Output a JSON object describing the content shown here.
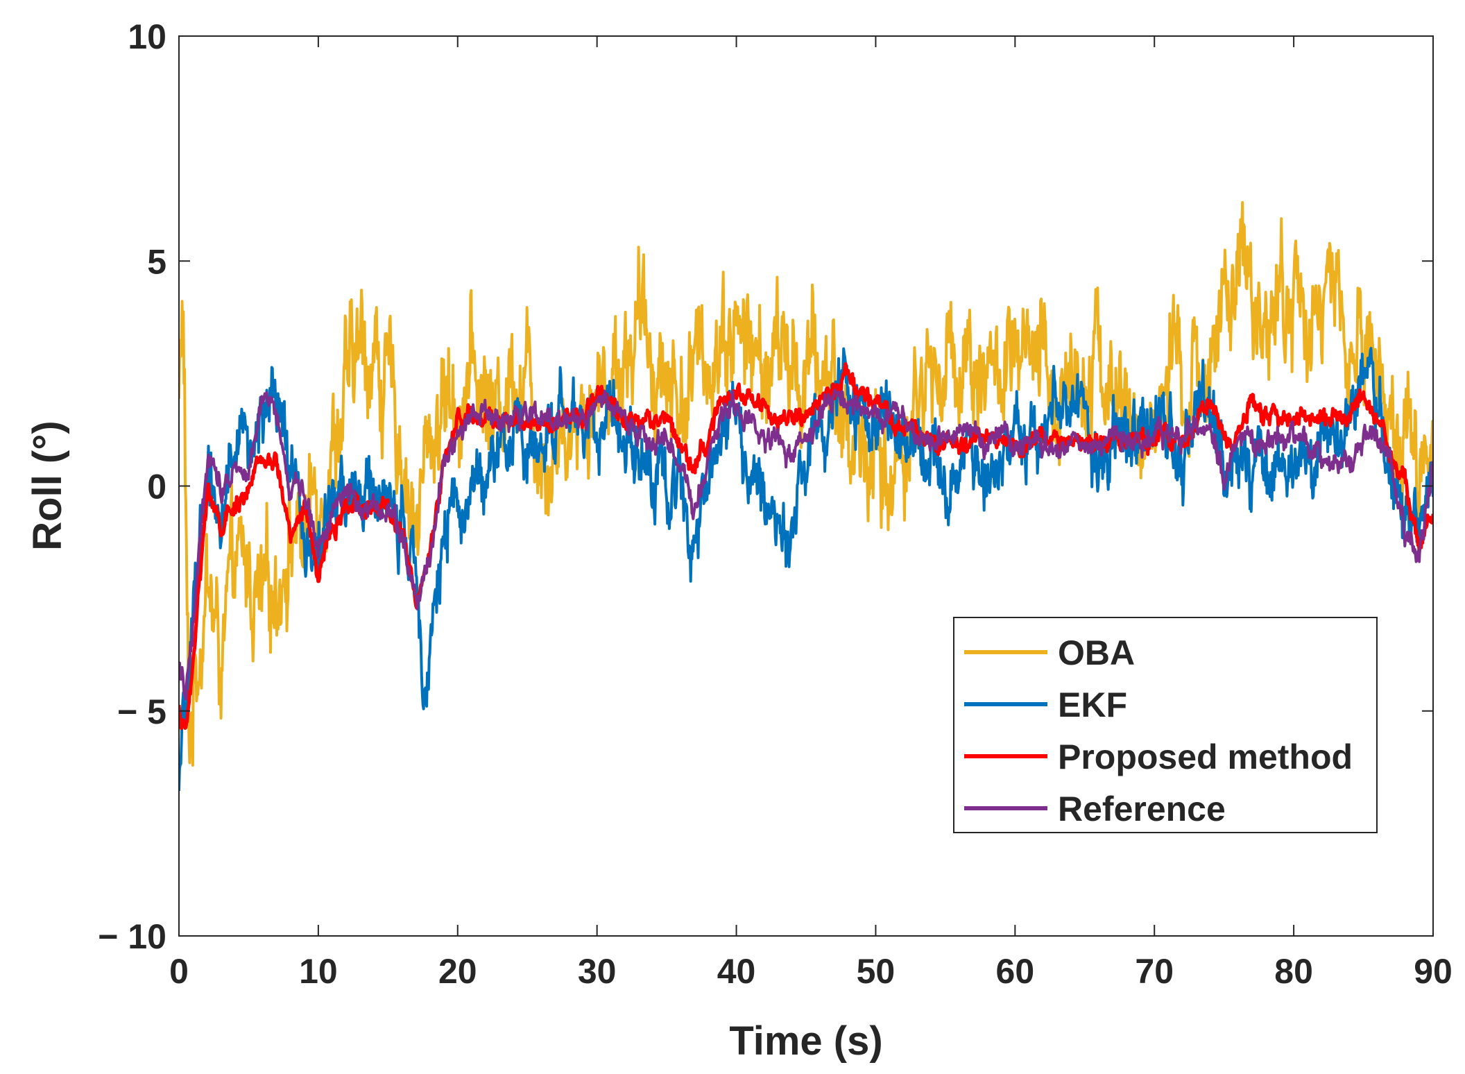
{
  "chart_data": {
    "type": "line",
    "title": "",
    "xlabel": "Time (s)",
    "ylabel": "Roll (°)",
    "xlim": [
      0,
      90
    ],
    "ylim": [
      -10,
      10
    ],
    "xticks": [
      0,
      10,
      20,
      30,
      40,
      50,
      60,
      70,
      80,
      90
    ],
    "yticks": [
      -10,
      -5,
      0,
      5,
      10
    ],
    "xtick_labels": [
      "0",
      "10",
      "20",
      "30",
      "40",
      "50",
      "60",
      "70",
      "80",
      "90"
    ],
    "ytick_labels": [
      "− 10",
      "− 5",
      "0",
      "5",
      "10"
    ],
    "grid": false,
    "legend_position": "lower-right",
    "series": [
      {
        "name": "OBA",
        "color": "#EDB120",
        "noise": 1.5,
        "x": [
          0,
          0.3,
          0.7,
          1.2,
          2,
          3,
          4,
          5,
          6,
          7,
          8,
          9,
          10,
          11,
          12,
          13,
          14,
          15,
          16,
          17,
          18,
          19,
          20,
          21,
          22,
          23,
          24,
          25,
          26,
          27,
          28,
          29,
          30,
          31,
          32,
          33,
          34,
          35,
          36,
          37,
          38,
          39,
          40,
          41,
          42,
          43,
          44,
          45,
          46,
          47,
          48,
          49,
          50,
          51,
          52,
          53,
          54,
          55,
          56,
          57,
          58,
          59,
          60,
          61,
          62,
          63,
          64,
          65,
          66,
          67,
          68,
          69,
          70,
          71,
          72,
          73,
          74,
          75,
          76,
          77,
          78,
          79,
          80,
          81,
          82,
          83,
          84,
          85,
          86,
          87,
          88,
          89,
          90
        ],
        "y": [
          2,
          4,
          -6,
          -4,
          -2,
          -4,
          -2,
          -2,
          -3,
          -2,
          -1,
          -1,
          0,
          1,
          2,
          3,
          3,
          2,
          1,
          -1,
          1,
          2,
          2,
          2.5,
          2,
          1.5,
          3,
          2.5,
          1,
          1,
          1.5,
          2,
          2,
          2.5,
          3,
          3.5,
          3,
          2.5,
          2,
          2.5,
          3,
          3.5,
          3.5,
          3,
          2.5,
          3,
          2.5,
          2.5,
          2.5,
          2.5,
          1,
          1,
          0.5,
          0,
          1,
          2,
          2.5,
          2.5,
          3,
          3,
          2.5,
          2.5,
          2.5,
          2.5,
          2.5,
          2,
          2.5,
          3,
          3,
          2,
          1.5,
          1,
          1.5,
          2.5,
          2,
          2,
          3.5,
          3.5,
          4.5,
          4,
          4,
          4,
          4,
          4,
          4,
          4,
          3,
          3,
          3,
          1.5,
          1,
          0.5,
          1
        ]
      },
      {
        "name": "EKF",
        "color": "#0072BD",
        "noise": 0.9,
        "x": [
          0,
          0.5,
          1,
          1.5,
          2,
          3,
          4,
          5,
          6,
          7,
          8,
          9,
          10,
          11,
          12,
          13,
          14,
          15,
          16,
          17,
          17.5,
          18,
          19,
          20,
          21,
          22,
          23,
          24,
          25,
          26,
          27,
          28,
          29,
          30,
          31,
          32,
          33,
          34,
          35,
          36,
          37,
          38,
          39,
          40,
          41,
          42,
          43,
          44,
          45,
          46,
          47,
          48,
          49,
          50,
          51,
          52,
          53,
          54,
          55,
          56,
          57,
          58,
          59,
          60,
          61,
          62,
          63,
          64,
          65,
          66,
          67,
          68,
          69,
          70,
          71,
          72,
          73,
          74,
          75,
          76,
          77,
          78,
          79,
          80,
          81,
          82,
          83,
          84,
          85,
          86,
          87,
          88,
          89,
          90
        ],
        "y": [
          -7,
          -5,
          -3,
          -1,
          0,
          -0.5,
          1,
          1,
          1.5,
          1.5,
          0.5,
          -1,
          -1.5,
          -0.5,
          0,
          -0.5,
          0,
          -0.5,
          -1,
          -2,
          -4,
          -3,
          -1.5,
          -0.5,
          0,
          0.5,
          0.5,
          1,
          1,
          1,
          1.5,
          1.5,
          1.5,
          1.5,
          1.5,
          1.5,
          1,
          0,
          0,
          0,
          -1,
          0.5,
          1.5,
          1.5,
          0,
          -0.5,
          -0.5,
          -0.5,
          0.5,
          1.5,
          2,
          2,
          1.5,
          1.5,
          1.5,
          1.5,
          1,
          0.5,
          0.5,
          0.5,
          0.5,
          0.5,
          0.5,
          1,
          1,
          1.5,
          2,
          1.5,
          1.5,
          1,
          1,
          1,
          1,
          1,
          1,
          1,
          1.5,
          1.5,
          0.5,
          1,
          0.5,
          0.5,
          0.5,
          0.5,
          0.5,
          1,
          1,
          1.5,
          2,
          1.5,
          0,
          -1,
          -1,
          0.5
        ]
      },
      {
        "name": "Proposed method",
        "color": "#FF0000",
        "noise": 0.25,
        "x": [
          0,
          0.5,
          1,
          1.5,
          2,
          2.5,
          3,
          4,
          5,
          6,
          7,
          8,
          9,
          10,
          11,
          12,
          13,
          14,
          15,
          16,
          17,
          18,
          19,
          20,
          21,
          22,
          23,
          24,
          25,
          26,
          27,
          28,
          29,
          30,
          31,
          32,
          33,
          34,
          35,
          36,
          37,
          38,
          39,
          40,
          41,
          42,
          43,
          44,
          45,
          46,
          47,
          48,
          49,
          50,
          51,
          52,
          53,
          54,
          55,
          56,
          57,
          58,
          59,
          60,
          61,
          62,
          63,
          64,
          65,
          66,
          67,
          68,
          69,
          70,
          71,
          72,
          73,
          74,
          75,
          76,
          77,
          78,
          79,
          80,
          81,
          82,
          83,
          84,
          85,
          86,
          87,
          88,
          89,
          90
        ],
        "y": [
          -5,
          -5.5,
          -4,
          -2,
          0,
          -0.5,
          -1,
          -0.5,
          0,
          0.5,
          0.5,
          -1,
          -0.5,
          -2,
          -1,
          -0.5,
          -0.5,
          -0.5,
          -0.5,
          -1,
          -2.5,
          -1.5,
          0.5,
          1.5,
          1.5,
          1.5,
          1.5,
          1.5,
          1.5,
          1.5,
          1.5,
          1.5,
          1.5,
          2,
          2,
          1.5,
          1.5,
          1.5,
          1.5,
          1,
          0.5,
          1,
          2,
          2,
          2,
          1.8,
          1.5,
          1.5,
          1.5,
          2,
          2,
          2.5,
          2,
          2,
          1.5,
          1.5,
          1.2,
          1,
          1,
          1,
          1,
          1,
          1,
          1,
          1,
          1,
          1,
          1,
          1,
          1,
          1,
          1,
          1,
          1,
          1,
          1,
          1.5,
          2,
          1,
          1,
          2,
          1.5,
          1.5,
          1.5,
          1.5,
          1.5,
          1.5,
          1.5,
          2,
          1.5,
          0.5,
          0,
          -1.5,
          -0.5
        ]
      },
      {
        "name": "Reference",
        "color": "#7E2F8E",
        "noise": 0.3,
        "x": [
          0,
          0.5,
          1,
          1.5,
          2,
          2.5,
          3,
          4,
          5,
          6,
          7,
          8,
          9,
          10,
          11,
          12,
          13,
          14,
          15,
          16,
          17,
          18,
          19,
          20,
          21,
          22,
          23,
          24,
          25,
          26,
          27,
          28,
          29,
          30,
          31,
          32,
          33,
          34,
          35,
          36,
          37,
          38,
          39,
          40,
          41,
          42,
          43,
          44,
          45,
          46,
          47,
          48,
          49,
          50,
          51,
          52,
          53,
          54,
          55,
          56,
          57,
          58,
          59,
          60,
          61,
          62,
          63,
          64,
          65,
          66,
          67,
          68,
          69,
          70,
          71,
          72,
          73,
          74,
          75,
          76,
          77,
          78,
          79,
          80,
          81,
          82,
          83,
          84,
          85,
          86,
          87,
          88,
          89,
          90
        ],
        "y": [
          -4,
          -4.5,
          -3,
          -1,
          0.5,
          0.5,
          0,
          0.5,
          0.5,
          2,
          1.5,
          0,
          0,
          -1.5,
          -0.5,
          0,
          -0.5,
          -0.5,
          -0.5,
          -1,
          -2.5,
          -1.5,
          0.5,
          1.2,
          1.5,
          1.5,
          1.5,
          1.5,
          1.5,
          1.5,
          1.5,
          1.5,
          1.5,
          1.8,
          1.8,
          1.5,
          1.2,
          1,
          1,
          0.5,
          -0.5,
          0.5,
          1.5,
          1.8,
          1.5,
          1,
          1,
          0.5,
          1,
          1.5,
          2,
          1.8,
          1.5,
          1.5,
          1.5,
          1.5,
          1,
          1,
          1,
          1,
          1,
          1,
          1,
          1,
          1,
          1,
          1,
          1,
          1,
          1,
          1,
          1,
          1,
          1,
          1,
          1,
          1.5,
          1.5,
          0,
          1,
          1,
          1,
          1,
          1,
          1,
          0.5,
          0.5,
          0.5,
          1,
          1,
          0.5,
          -1,
          -1.5,
          0.5
        ]
      }
    ]
  }
}
